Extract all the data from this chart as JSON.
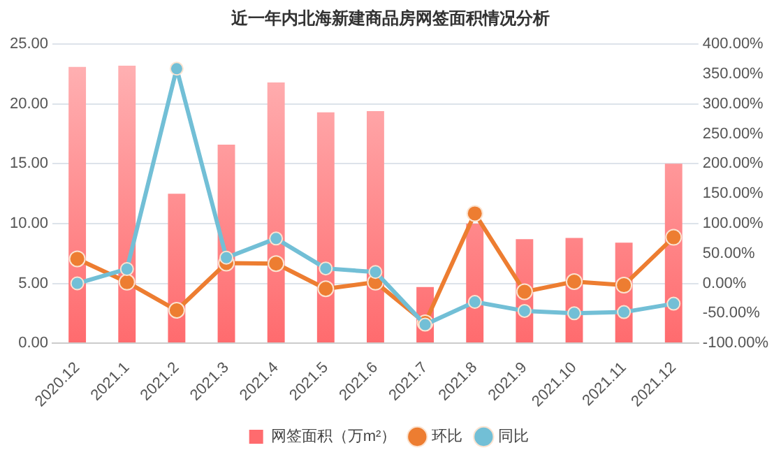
{
  "chart_data": {
    "type": "bar",
    "title": "近一年内北海新建商品房网签面积情况分析",
    "categories": [
      "2020.12",
      "2021.1",
      "2021.2",
      "2021.3",
      "2021.4",
      "2021.5",
      "2021.6",
      "2021.7",
      "2021.8",
      "2021.9",
      "2021.10",
      "2021.11",
      "2021.12"
    ],
    "series": [
      {
        "name": "网签面积（万m²）",
        "color": "#ff6b6e",
        "values": [
          23.1,
          23.2,
          12.5,
          16.6,
          21.8,
          19.3,
          19.4,
          4.7,
          10.0,
          8.7,
          8.8,
          8.4,
          15.0
        ]
      },
      {
        "name": "环比",
        "type": "line",
        "axis": "y2",
        "color": "#ed7d31",
        "values": [
          41,
          2,
          -45,
          34,
          33,
          -9,
          2,
          -66,
          117,
          -14,
          3,
          -3,
          77
        ]
      },
      {
        "name": "同比",
        "type": "line",
        "axis": "y2",
        "color": "#72bfd6",
        "values": [
          0,
          24,
          359,
          43,
          75,
          25,
          19,
          -69,
          -31,
          -46,
          -50,
          -48,
          -34
        ]
      }
    ],
    "ylim": [
      0,
      25
    ],
    "yticks": [
      {
        "value": 0,
        "label": "0.00"
      },
      {
        "value": 5,
        "label": "5.00"
      },
      {
        "value": 10,
        "label": "10.00"
      },
      {
        "value": 15,
        "label": "15.00"
      },
      {
        "value": 20,
        "label": "20.00"
      },
      {
        "value": 25,
        "label": "25.00"
      }
    ],
    "y2lim": [
      -100,
      400
    ],
    "y2ticks": [
      {
        "value": -100,
        "label": "-100.00%"
      },
      {
        "value": -50,
        "label": "-50.00%"
      },
      {
        "value": 0,
        "label": "0.00%"
      },
      {
        "value": 50,
        "label": "50.00%"
      },
      {
        "value": 100,
        "label": "100.00%"
      },
      {
        "value": 150,
        "label": "150.00%"
      },
      {
        "value": 200,
        "label": "200.00%"
      },
      {
        "value": 250,
        "label": "250.00%"
      },
      {
        "value": 300,
        "label": "300.00%"
      },
      {
        "value": 350,
        "label": "350.00%"
      },
      {
        "value": 400,
        "label": "400.00%"
      }
    ],
    "grid": "y",
    "legend": "bottom",
    "marker": "circle"
  }
}
